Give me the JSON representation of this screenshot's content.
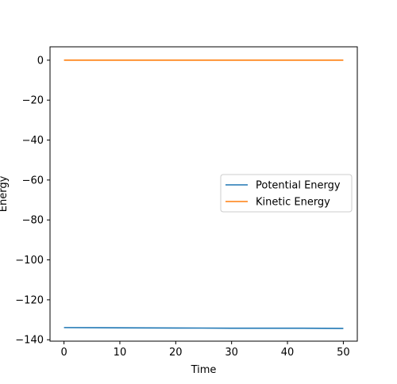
{
  "chart_data": {
    "type": "line",
    "title": "",
    "xlabel": "Time",
    "ylabel": "Energy",
    "xlim": [
      -2.5,
      52.5
    ],
    "ylim": [
      -140.7,
      6.7
    ],
    "xticks": [
      0,
      10,
      20,
      30,
      40,
      50
    ],
    "yticks": [
      0,
      -20,
      -40,
      -60,
      -80,
      -100,
      -120,
      -140
    ],
    "grid": false,
    "legend_position": "center-right",
    "series": [
      {
        "name": "Potential Energy",
        "color": "#1f77b4",
        "x": [
          0,
          10,
          20,
          30,
          40,
          50
        ],
        "y": [
          -133.9,
          -134.0,
          -134.1,
          -134.2,
          -134.2,
          -134.3
        ]
      },
      {
        "name": "Kinetic Energy",
        "color": "#ff7f0e",
        "x": [
          0,
          10,
          20,
          30,
          40,
          50
        ],
        "y": [
          0.0,
          0.0,
          0.0,
          0.0,
          0.0,
          0.0
        ]
      }
    ]
  }
}
